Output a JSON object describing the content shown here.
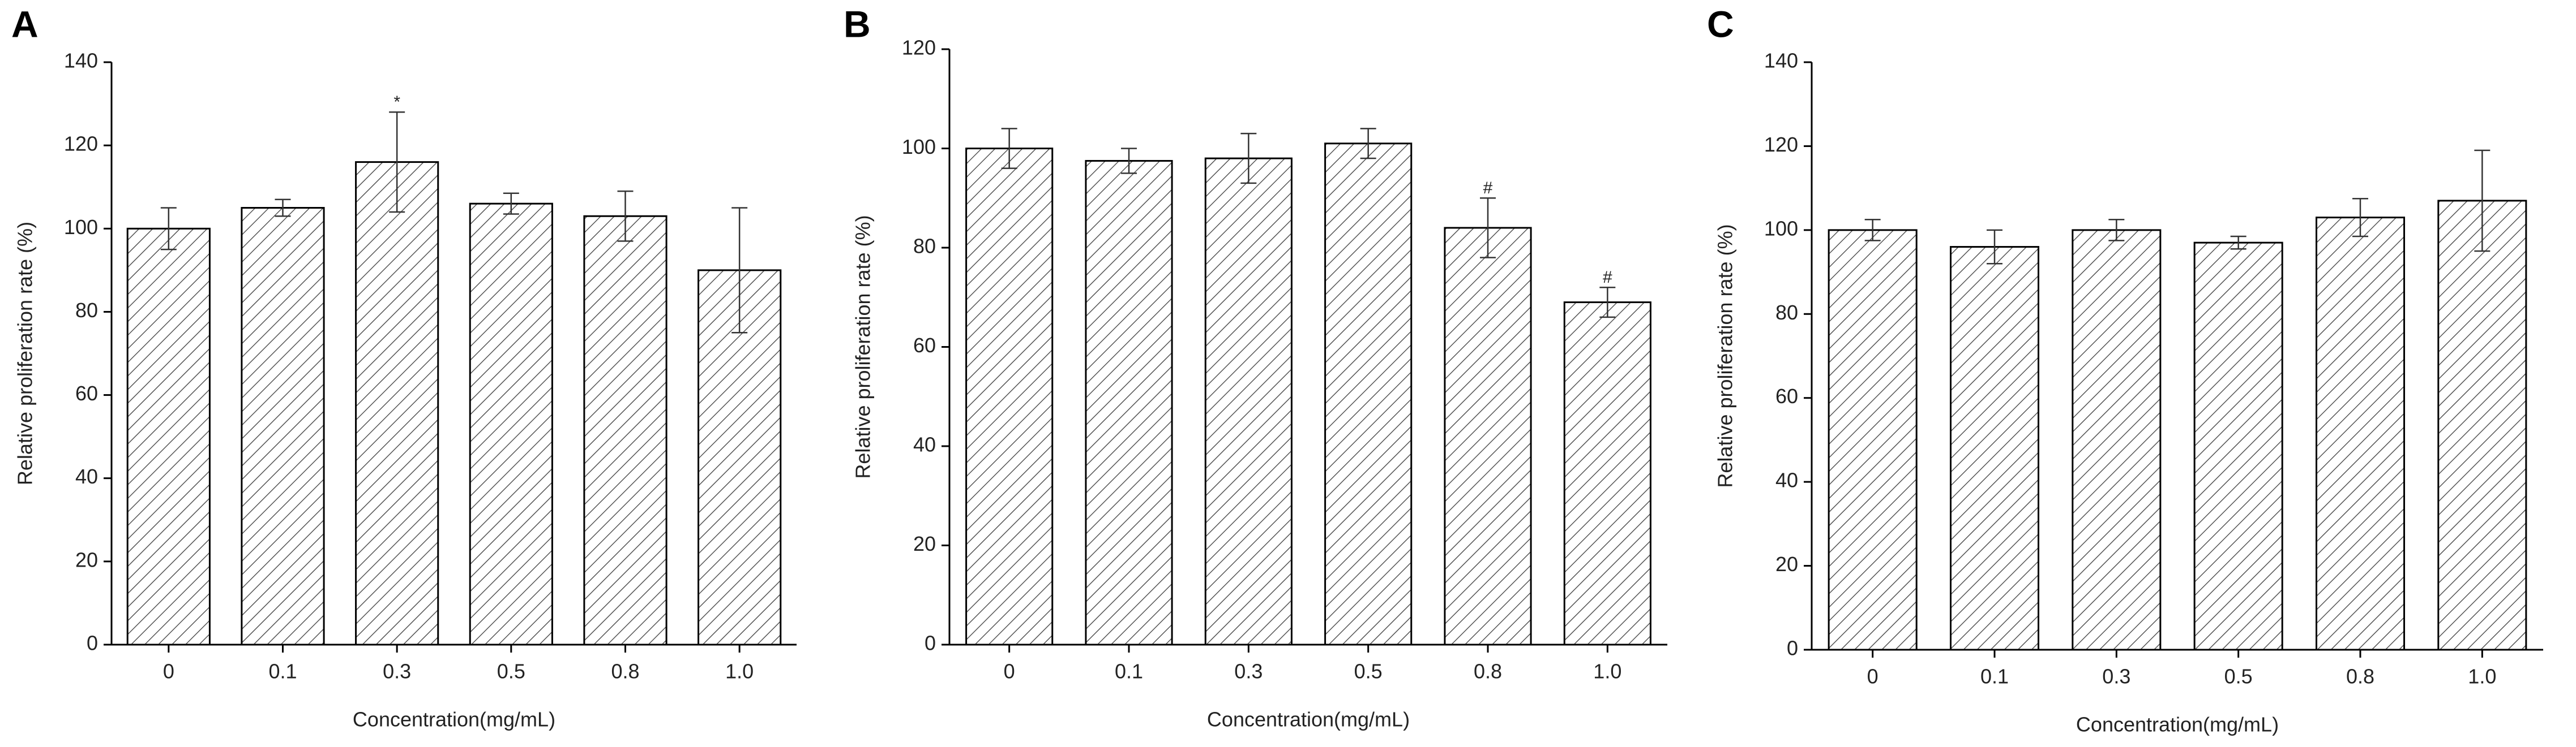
{
  "chart_data": [
    {
      "type": "bar",
      "title": "A",
      "xlabel": "Concentration(mg/mL)",
      "ylabel": "Relative proliferation rate (%)",
      "categories": [
        "0",
        "0.1",
        "0.3",
        "0.5",
        "0.8",
        "1.0"
      ],
      "values": [
        100,
        105,
        116,
        106,
        103,
        90
      ],
      "errors": [
        5,
        2,
        12,
        2.5,
        6,
        15
      ],
      "markers": [
        null,
        null,
        "*",
        null,
        null,
        null
      ],
      "ylim": [
        0,
        140
      ],
      "yticks": [
        0,
        20,
        40,
        60,
        80,
        100,
        120,
        140
      ],
      "hatch_color": "#555555",
      "edge_color": "#000000"
    },
    {
      "type": "bar",
      "title": "B",
      "xlabel": "Concentration(mg/mL)",
      "ylabel": "Relative proliferation rate (%)",
      "categories": [
        "0",
        "0.1",
        "0.3",
        "0.5",
        "0.8",
        "1.0"
      ],
      "values": [
        100,
        97.5,
        98,
        101,
        84,
        69
      ],
      "errors": [
        4,
        2.5,
        5,
        3,
        6,
        3
      ],
      "markers": [
        null,
        null,
        null,
        null,
        "#",
        "#"
      ],
      "ylim": [
        0,
        120
      ],
      "yticks": [
        0,
        20,
        40,
        60,
        80,
        100,
        120
      ],
      "hatch_color": "#555555",
      "edge_color": "#000000"
    },
    {
      "type": "bar",
      "title": "C",
      "xlabel": "Concentration(mg/mL)",
      "ylabel": "Relative proliferation rate (%)",
      "categories": [
        "0",
        "0.1",
        "0.3",
        "0.5",
        "0.8",
        "1.0"
      ],
      "values": [
        100,
        96,
        100,
        97,
        103,
        107
      ],
      "errors": [
        2.5,
        4,
        2.5,
        1.5,
        4.5,
        12
      ],
      "markers": [
        null,
        null,
        null,
        null,
        null,
        null
      ],
      "ylim": [
        0,
        140
      ],
      "yticks": [
        0,
        20,
        40,
        60,
        80,
        100,
        120,
        140
      ],
      "hatch_color": "#555555",
      "edge_color": "#000000"
    }
  ]
}
